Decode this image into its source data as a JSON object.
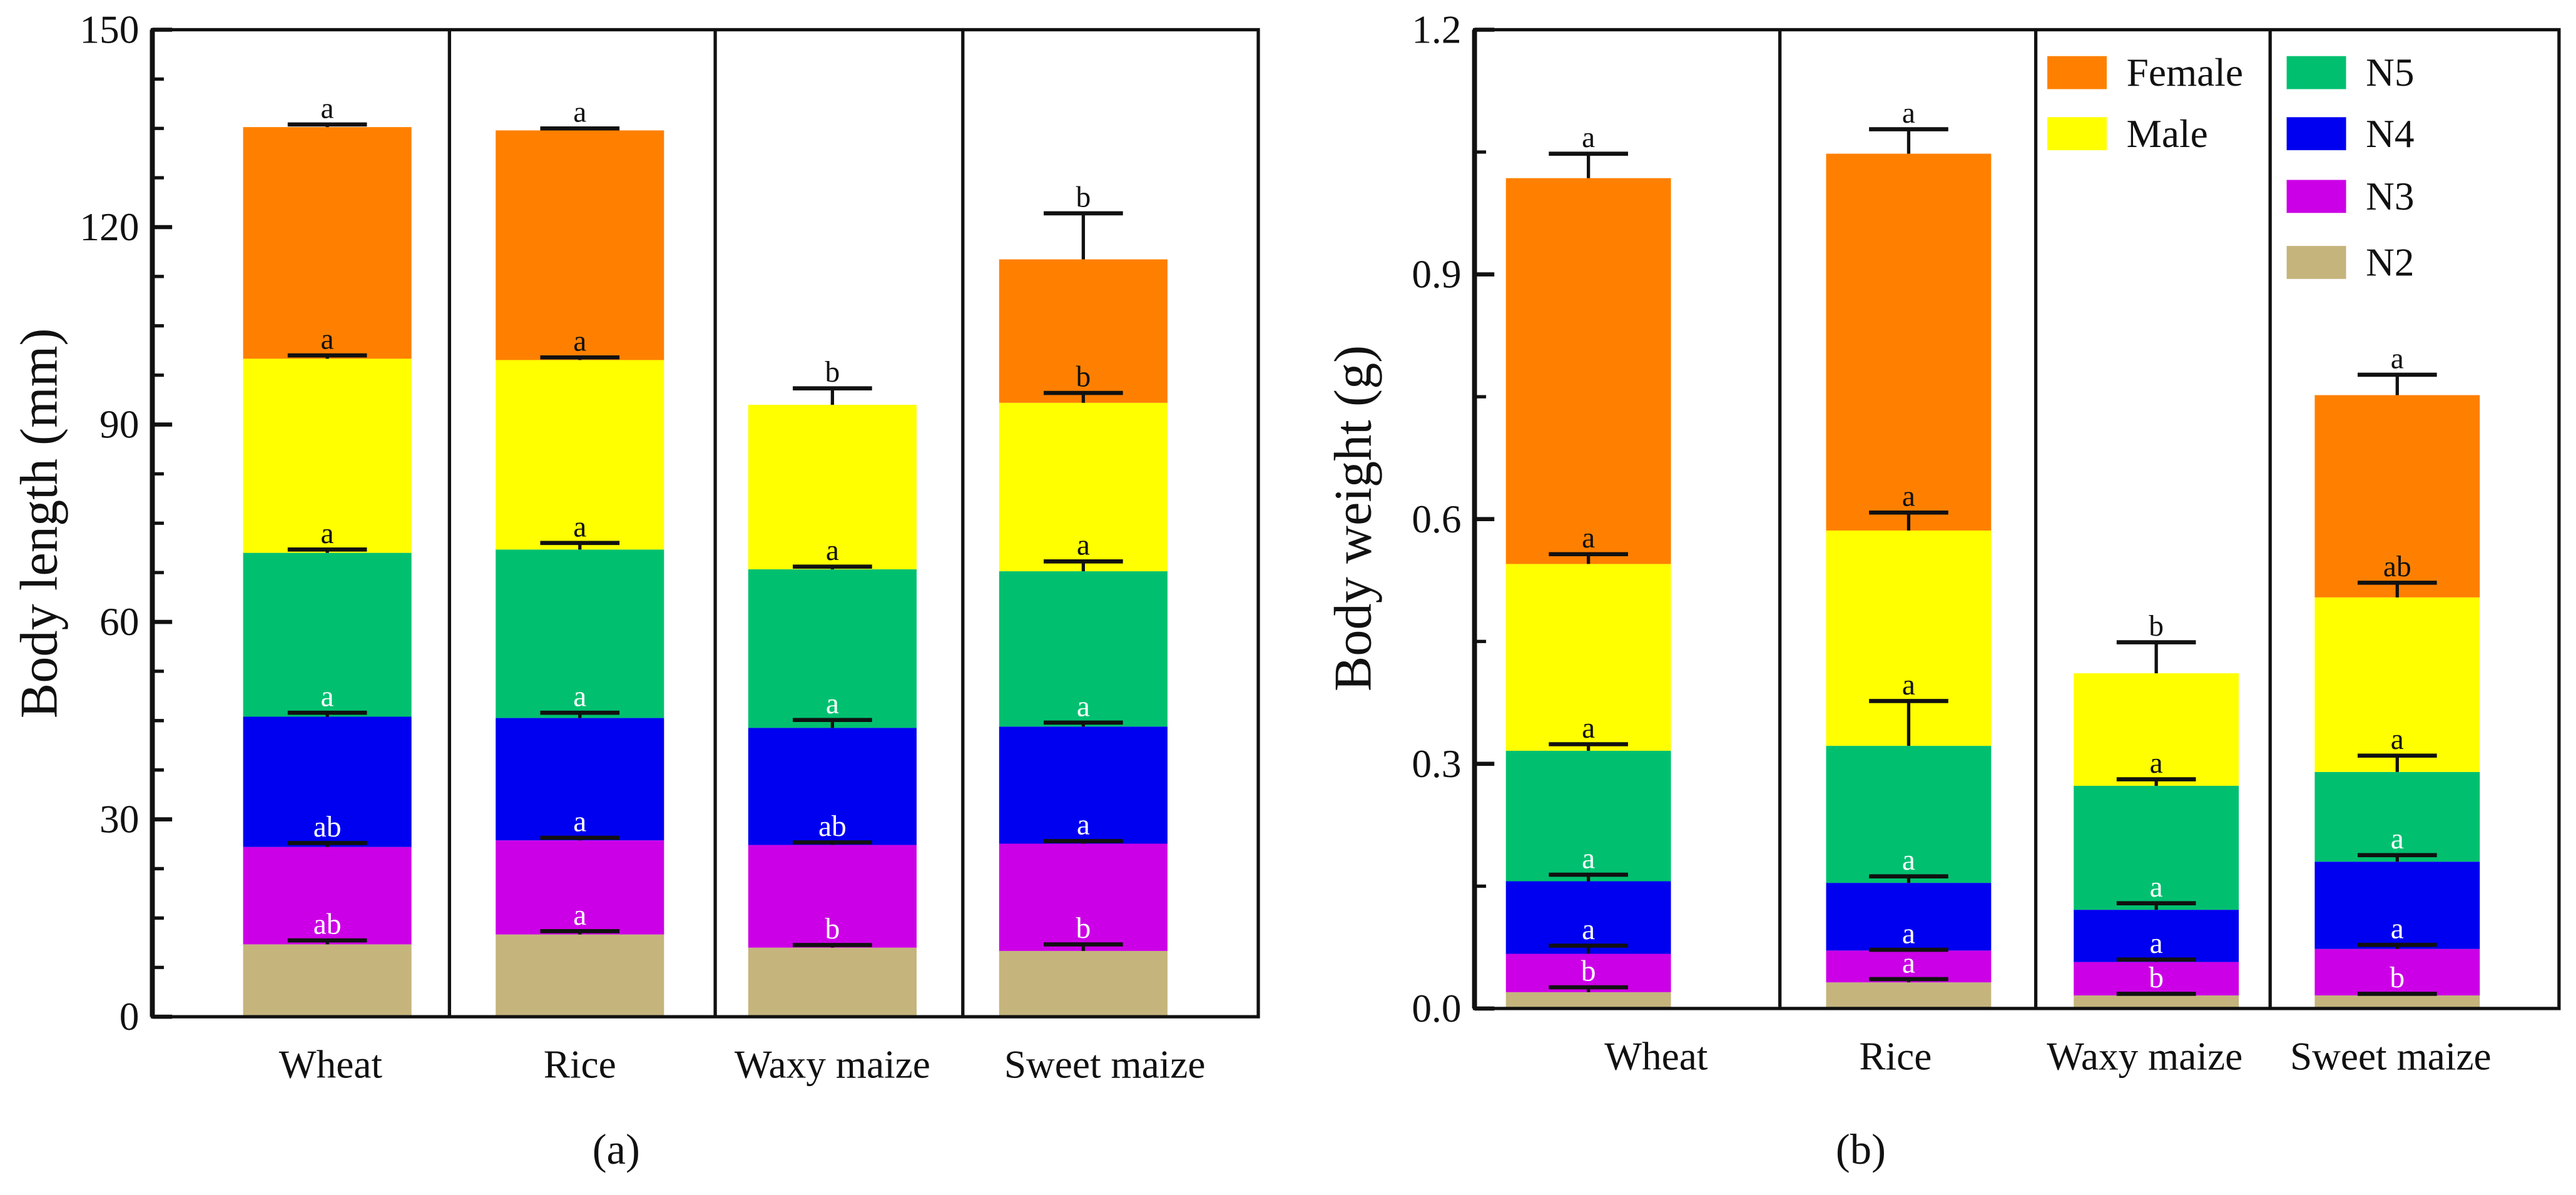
{
  "colors": {
    "N2": "#c5b47c",
    "N3": "#cc00e6",
    "N4": "#0000f0",
    "N5": "#00c070",
    "Male": "#ffff00",
    "Female": "#ff8000"
  },
  "chart_data": [
    {
      "type": "bar",
      "stacked": true,
      "panel_label": "(a)",
      "ylabel": "Body length (mm)",
      "xlabel": "",
      "ylim": [
        0,
        150
      ],
      "yticks": [
        "0",
        "30",
        "60",
        "90",
        "120",
        "150"
      ],
      "categories": [
        "Wheat",
        "Rice",
        "Waxy maize",
        "Sweet maize"
      ],
      "series": [
        {
          "name": "N2",
          "values": [
            11.0,
            12.5,
            10.5,
            10.0
          ],
          "errors": [
            0.6,
            0.5,
            0.4,
            1.0
          ],
          "letters": [
            "ab",
            "a",
            "b",
            "b"
          ]
        },
        {
          "name": "N3",
          "values": [
            14.8,
            14.3,
            15.6,
            16.3
          ],
          "errors": [
            0.6,
            0.4,
            0.4,
            0.4
          ],
          "letters": [
            "ab",
            "a",
            "ab",
            "a"
          ]
        },
        {
          "name": "N4",
          "values": [
            19.8,
            18.6,
            17.8,
            17.8
          ],
          "errors": [
            0.6,
            0.8,
            1.2,
            0.6
          ],
          "letters": [
            "a",
            "a",
            "a",
            "a"
          ]
        },
        {
          "name": "N5",
          "values": [
            24.9,
            25.6,
            24.1,
            23.6
          ],
          "errors": [
            0.5,
            1.0,
            0.4,
            1.5
          ],
          "letters": [
            "a",
            "a",
            "a",
            "a"
          ]
        },
        {
          "name": "Male",
          "values": [
            29.5,
            28.8,
            25.0,
            25.6
          ],
          "errors": [
            0.5,
            0.4,
            2.5,
            1.5
          ],
          "letters": [
            "a",
            "a",
            "b",
            "b"
          ]
        },
        {
          "name": "Female",
          "values": [
            35.2,
            34.9,
            null,
            21.8
          ],
          "errors": [
            0.4,
            0.3,
            null,
            7.0
          ],
          "letters": [
            "a",
            "a",
            null,
            "b"
          ]
        }
      ],
      "legend": null
    },
    {
      "type": "bar",
      "stacked": true,
      "panel_label": "(b)",
      "ylabel": "Body weight (g)",
      "xlabel": "",
      "ylim": [
        0,
        1.2
      ],
      "yticks": [
        "0.0",
        "0.3",
        "0.6",
        "0.9",
        "1.2"
      ],
      "categories": [
        "Wheat",
        "Rice",
        "Waxy maize",
        "Sweet maize"
      ],
      "series": [
        {
          "name": "N2",
          "values": [
            0.02,
            0.032,
            0.016,
            0.016
          ],
          "errors": [
            0.006,
            0.004,
            0.002,
            0.002
          ],
          "letters": [
            "b",
            "a",
            "b",
            "b"
          ]
        },
        {
          "name": "N3",
          "values": [
            0.047,
            0.039,
            0.041,
            0.057
          ],
          "errors": [
            0.01,
            0.001,
            0.003,
            0.005
          ],
          "letters": [
            "a",
            "a",
            "a",
            "a"
          ]
        },
        {
          "name": "N4",
          "values": [
            0.089,
            0.083,
            0.064,
            0.107
          ],
          "errors": [
            0.008,
            0.008,
            0.008,
            0.008
          ],
          "letters": [
            "a",
            "a",
            "a",
            "a"
          ]
        },
        {
          "name": "N5",
          "values": [
            0.16,
            0.168,
            0.152,
            0.11
          ],
          "errors": [
            0.008,
            0.055,
            0.008,
            0.02
          ],
          "letters": [
            "a",
            "a",
            "a",
            "a"
          ]
        },
        {
          "name": "Male",
          "values": [
            0.229,
            0.264,
            0.138,
            0.214
          ],
          "errors": [
            0.012,
            0.022,
            0.038,
            0.018
          ],
          "letters": [
            "a",
            "a",
            "b",
            "ab"
          ]
        },
        {
          "name": "Female",
          "values": [
            0.473,
            0.462,
            null,
            0.248
          ],
          "errors": [
            0.03,
            0.03,
            null,
            0.025
          ],
          "letters": [
            "a",
            "a",
            null,
            "a"
          ]
        }
      ],
      "legend": {
        "placement": "top-right",
        "entries": [
          "Female",
          "Male",
          "N5",
          "N4",
          "N3",
          "N2"
        ]
      }
    }
  ]
}
